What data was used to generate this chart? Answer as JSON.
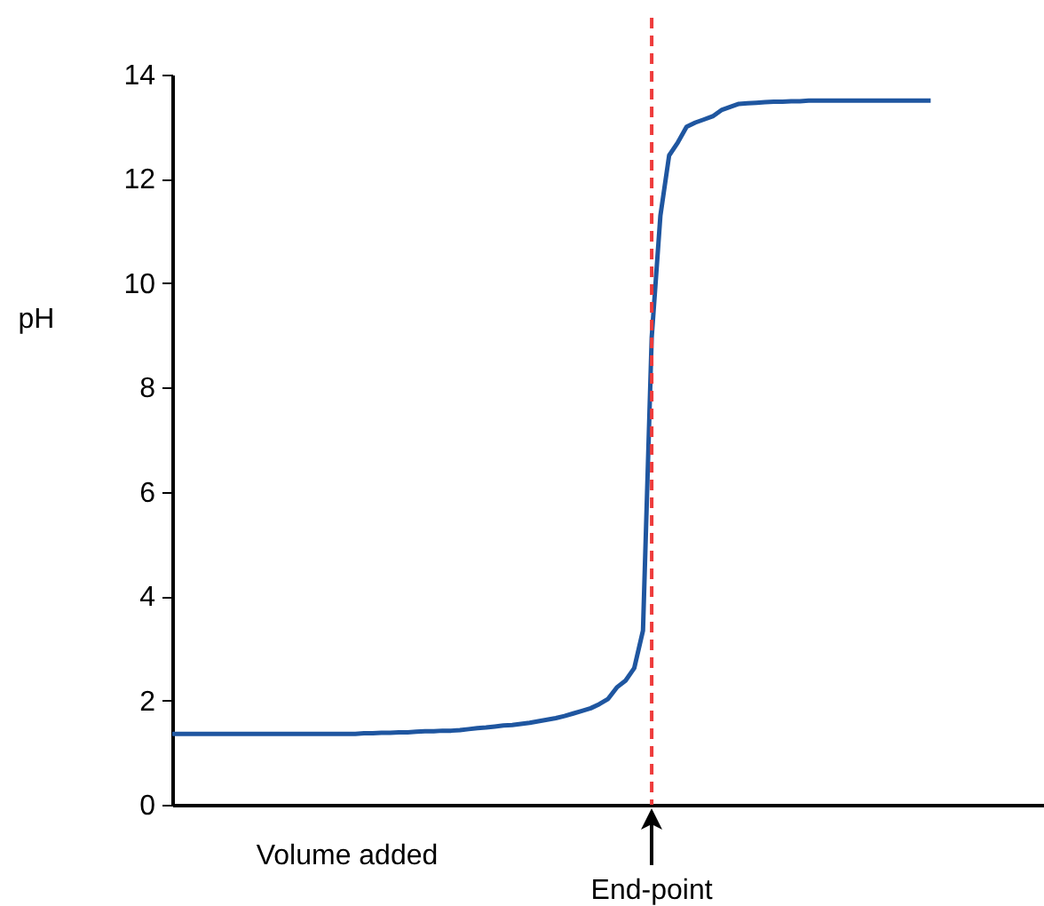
{
  "chart_data": {
    "type": "line",
    "xlabel": "Volume added",
    "ylabel": "pH",
    "categories": [
      null,
      null,
      null,
      null,
      null,
      null,
      null,
      null,
      null,
      null,
      null,
      null,
      null,
      null,
      null,
      null,
      null,
      null,
      null,
      null,
      null,
      null,
      null,
      null,
      null,
      null,
      null,
      null,
      null,
      null,
      null,
      null,
      null,
      null,
      null,
      null,
      null,
      null,
      null,
      null,
      null,
      null,
      null,
      null,
      null,
      null,
      null,
      null,
      null,
      null,
      null,
      null,
      null,
      null,
      null,
      null,
      null,
      null,
      null,
      null,
      null,
      null,
      null,
      null,
      null,
      null,
      null,
      null,
      null,
      null,
      null,
      null,
      null,
      null,
      null,
      null,
      null,
      null,
      null,
      null,
      null,
      null,
      null,
      null,
      null,
      null,
      null,
      null,
      null,
      null,
      null,
      null,
      null,
      null,
      null,
      null,
      null,
      null,
      null,
      null,
      null
    ],
    "series": [
      {
        "color": "#1f56a0",
        "values": [
          1.36,
          1.36,
          1.36,
          1.36,
          1.36,
          1.36,
          1.36,
          1.36,
          1.36,
          1.36,
          1.36,
          1.36,
          1.36,
          1.36,
          1.36,
          1.36,
          1.36,
          1.36,
          1.36,
          1.36,
          1.36,
          1.36,
          1.37,
          1.37,
          1.38,
          1.38,
          1.39,
          1.39,
          1.4,
          1.41,
          1.41,
          1.42,
          1.42,
          1.43,
          1.45,
          1.47,
          1.48,
          1.5,
          1.52,
          1.53,
          1.55,
          1.57,
          1.6,
          1.63,
          1.66,
          1.7,
          1.75,
          1.8,
          1.85,
          1.93,
          2.03,
          2.25,
          2.38,
          2.62,
          3.34,
          8.96,
          11.3,
          12.45,
          12.7,
          13.0,
          13.08,
          13.14,
          13.2,
          13.32,
          13.38,
          13.44,
          13.45,
          13.46,
          13.47,
          13.48,
          13.48,
          13.49,
          13.49,
          13.5,
          13.5,
          13.5,
          13.5,
          13.5,
          13.5,
          13.5,
          13.5,
          13.5,
          13.5,
          13.5,
          13.5,
          13.5,
          13.5,
          13.5,
          null,
          null,
          null,
          null,
          null,
          null,
          null,
          null,
          null,
          null,
          null,
          null,
          null
        ]
      }
    ],
    "ylim": [
      0,
      14
    ],
    "yticks": [
      0,
      2,
      4,
      6,
      8,
      10,
      12,
      14
    ],
    "ref_lines": [
      {
        "axis": "x",
        "label": "End-point",
        "color": "#ee3b3b",
        "line_style": "dashed"
      }
    ],
    "tick_labels": "y",
    "grid": false,
    "marker": "none",
    "line_style": "solid"
  }
}
